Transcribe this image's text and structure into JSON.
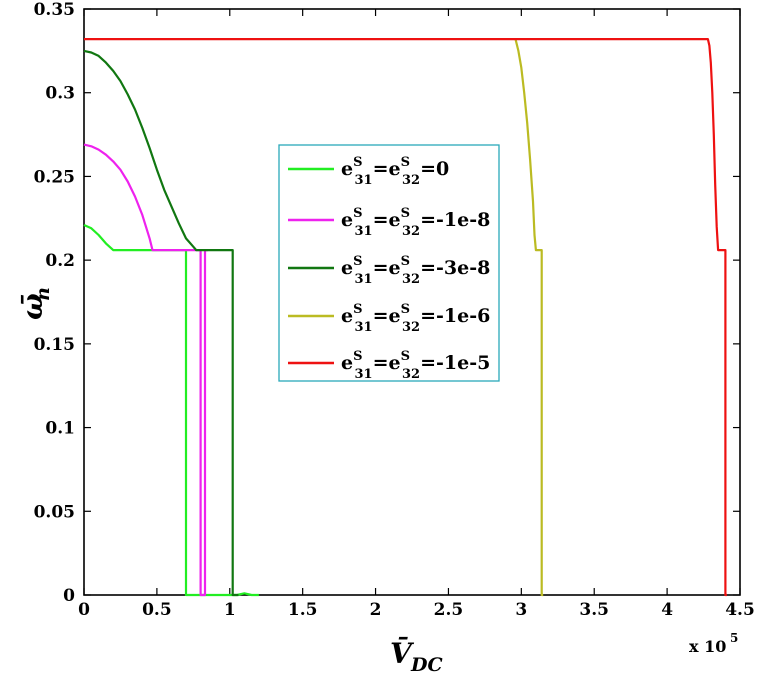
{
  "chart_data": {
    "type": "line",
    "xlabel": "V̄",
    "xlabel_sub": "DC",
    "ylabel": "ω̄",
    "ylabel_sub": "n",
    "x_multiplier": "x 10",
    "x_multiplier_exp": "5",
    "xlim": [
      0,
      4.5
    ],
    "ylim": [
      0,
      0.35
    ],
    "xticks": [
      "0",
      "0.5",
      "1",
      "1.5",
      "2",
      "2.5",
      "3",
      "3.5",
      "4",
      "4.5"
    ],
    "yticks": [
      "0",
      "0.05",
      "0.1",
      "0.15",
      "0.2",
      "0.25",
      "0.3",
      "0.35"
    ],
    "grid": false,
    "legend_position": "center",
    "series": [
      {
        "name": "e31S=e32S=0",
        "legend": {
          "e1": "e",
          "s1": "S",
          "sub1": "31",
          "e2": "=e",
          "s2": "S",
          "sub2": "32",
          "tail": "=0"
        },
        "color": "#22ee22",
        "x": [
          0,
          0.05,
          0.1,
          0.15,
          0.2,
          0.7,
          0.7,
          0.7,
          0.71,
          0.72,
          1.05,
          1.1,
          1.15,
          1.2
        ],
        "y": [
          0.221,
          0.219,
          0.215,
          0.21,
          0.206,
          0.206,
          0.206,
          0,
          0,
          0,
          0,
          0.001,
          0,
          0
        ]
      },
      {
        "name": "e31S=e32S=-1e-8",
        "legend": {
          "e1": "e",
          "s1": "S",
          "sub1": "31",
          "e2": "=e",
          "s2": "S",
          "sub2": "32",
          "tail": "=-1e-8"
        },
        "color": "#ee22ee",
        "x": [
          0,
          0.05,
          0.1,
          0.15,
          0.2,
          0.25,
          0.3,
          0.35,
          0.4,
          0.45,
          0.47,
          0.8,
          0.8,
          0.83,
          0.83,
          0.85
        ],
        "y": [
          0.269,
          0.268,
          0.266,
          0.263,
          0.259,
          0.254,
          0.247,
          0.238,
          0.227,
          0.213,
          0.206,
          0.206,
          0,
          0,
          0.206,
          0.206
        ]
      },
      {
        "name": "e31S=e32S=-3e-8",
        "legend": {
          "e1": "e",
          "s1": "S",
          "sub1": "31",
          "e2": "=e",
          "s2": "S",
          "sub2": "32",
          "tail": "=-3e-8"
        },
        "color": "#117711",
        "x": [
          0,
          0.05,
          0.1,
          0.15,
          0.2,
          0.25,
          0.3,
          0.35,
          0.4,
          0.45,
          0.5,
          0.55,
          0.6,
          0.65,
          0.7,
          0.75,
          0.77,
          1.02,
          1.02,
          1.04,
          1.06
        ],
        "y": [
          0.325,
          0.324,
          0.322,
          0.318,
          0.313,
          0.307,
          0.299,
          0.29,
          0.279,
          0.267,
          0.254,
          0.242,
          0.232,
          0.222,
          0.213,
          0.208,
          0.206,
          0.206,
          0,
          0,
          0
        ]
      },
      {
        "name": "e31S=e32S=-1e-6",
        "legend": {
          "e1": "e",
          "s1": "S",
          "sub1": "31",
          "e2": "=e",
          "s2": "S",
          "sub2": "32",
          "tail": "=-1e-6"
        },
        "color": "#bbbb22",
        "x": [
          2.96,
          2.98,
          3.0,
          3.02,
          3.04,
          3.06,
          3.08,
          3.09,
          3.1,
          3.14,
          3.14,
          3.15
        ],
        "y": [
          0.332,
          0.325,
          0.315,
          0.3,
          0.282,
          0.26,
          0.235,
          0.215,
          0.206,
          0.206,
          0,
          0
        ]
      },
      {
        "name": "e31S=e32S=-1e-5",
        "legend": {
          "e1": "e",
          "s1": "S",
          "sub1": "31",
          "e2": "=e",
          "s2": "S",
          "sub2": "32",
          "tail": "=-1e-5"
        },
        "color": "#ee1111",
        "x": [
          0,
          4.28,
          4.29,
          4.3,
          4.31,
          4.32,
          4.33,
          4.34,
          4.35,
          4.4,
          4.4,
          4.41
        ],
        "y": [
          0.332,
          0.332,
          0.328,
          0.318,
          0.3,
          0.275,
          0.245,
          0.22,
          0.206,
          0.206,
          0,
          0
        ]
      }
    ]
  }
}
